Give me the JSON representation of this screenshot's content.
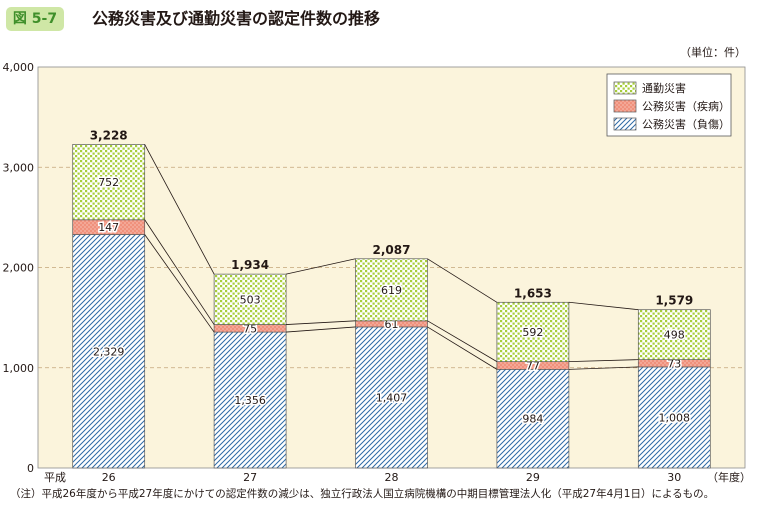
{
  "figure": {
    "number": "図 5-7",
    "title": "公務災害及び通勤災害の認定件数の推移",
    "unit": "（単位：件）",
    "note": "（注）平成26年度から平成27年度にかけての認定件数の減少は、独立行政法人国立病院機構の中期目標管理法人化（平成27年4月1日）によるもの。"
  },
  "colors": {
    "plot_bg": "#fbf4dc",
    "injury_hatch": "#2e6aa6",
    "injury_bg": "#ffffff",
    "disease": "#f0917c",
    "commute_dots": "#a7cd3a",
    "gridline": "#c4a57a",
    "badge_bg": "#cfe7a6"
  },
  "chart_data": {
    "type": "bar",
    "stacked": true,
    "title": "公務災害及び通勤災害の認定件数の推移",
    "xlabel": "（年度）",
    "x_prefix": "平成",
    "ylabel": "",
    "categories": [
      "26",
      "27",
      "28",
      "29",
      "30"
    ],
    "ylim": [
      0,
      4000
    ],
    "yticks": [
      0,
      1000,
      2000,
      3000,
      4000
    ],
    "ytick_labels": [
      "0",
      "1,000",
      "2,000",
      "3,000",
      "4,000"
    ],
    "grid": true,
    "legend_position": "top-right",
    "series": [
      {
        "name": "公務災害（負傷）",
        "key": "injury",
        "values": [
          2329,
          1356,
          1407,
          984,
          1008
        ],
        "labels": [
          "2,329",
          "1,356",
          "1,407",
          "984",
          "1,008"
        ]
      },
      {
        "name": "公務災害（疾病）",
        "key": "disease",
        "values": [
          147,
          75,
          61,
          77,
          73
        ],
        "labels": [
          "147",
          "75",
          "61",
          "77",
          "73"
        ]
      },
      {
        "name": "通勤災害",
        "key": "commute",
        "values": [
          752,
          503,
          619,
          592,
          498
        ],
        "labels": [
          "752",
          "503",
          "619",
          "592",
          "498"
        ]
      }
    ],
    "totals": [
      3228,
      1934,
      2087,
      1653,
      1579
    ],
    "total_labels": [
      "3,228",
      "1,934",
      "2,087",
      "1,653",
      "1,579"
    ],
    "legend_order": [
      "通勤災害",
      "公務災害（疾病）",
      "公務災害（負傷）"
    ]
  }
}
